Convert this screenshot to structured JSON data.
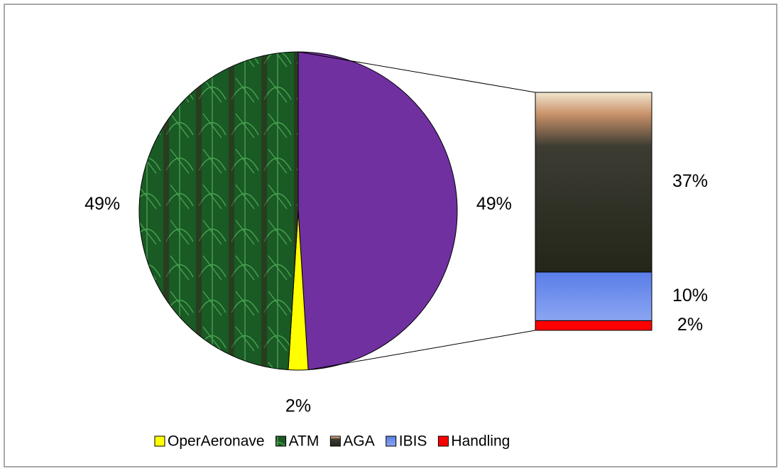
{
  "chart_data": {
    "type": "bar-of-pie",
    "categories": [
      "OperAeronave",
      "ATM",
      "AGA",
      "IBIS",
      "Handling"
    ],
    "values": [
      2,
      49,
      37,
      10,
      2
    ],
    "value_labels": [
      "2%",
      "49%",
      "37%",
      "10%",
      "2%"
    ],
    "colors": [
      "#ffff00",
      "#1f6b2c",
      "#3a3526",
      "#6d8ff0",
      "#ff0000"
    ],
    "other_value": 49,
    "other_value_label": "49%",
    "other_color": "#7030a0",
    "second_plot_values": 3,
    "legend": "bottom"
  }
}
